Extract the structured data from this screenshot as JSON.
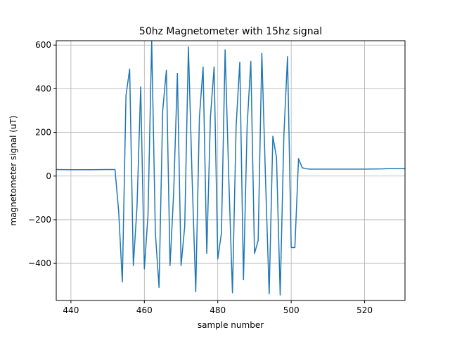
{
  "chart_data": {
    "type": "line",
    "title": "50hz Magnetometer with 15hz signal",
    "xlabel": "sample number",
    "ylabel": "magnetometer signal (uT)",
    "xlim": [
      436,
      531
    ],
    "ylim": [
      -570,
      620
    ],
    "xticks": [
      440,
      460,
      480,
      500,
      520
    ],
    "yticks": [
      -400,
      -200,
      0,
      200,
      400,
      600
    ],
    "ytick_labels": [
      "−400",
      "−200",
      "0",
      "200",
      "400",
      "600"
    ],
    "grid": true,
    "line_color": "#1f77b4",
    "series": [
      {
        "x": [
          436,
          440,
          445,
          450,
          452,
          453,
          454,
          455,
          456,
          457,
          458,
          459,
          460,
          461,
          462,
          463,
          464,
          465,
          466,
          467,
          468,
          469,
          470,
          471,
          472,
          473,
          474,
          475,
          476,
          477,
          478,
          479,
          480,
          481,
          482,
          483,
          484,
          485,
          486,
          487,
          488,
          489,
          490,
          491,
          492,
          493,
          494,
          495,
          496,
          497,
          498,
          499,
          500,
          501,
          502,
          503,
          504,
          505,
          510,
          520,
          525,
          526,
          531
        ],
        "y": [
          30,
          29,
          29,
          30,
          30,
          -160,
          -485,
          370,
          490,
          -410,
          -140,
          408,
          -425,
          -175,
          620,
          -260,
          -510,
          300,
          485,
          -410,
          -70,
          470,
          -410,
          -230,
          592,
          -5,
          -530,
          270,
          500,
          -355,
          270,
          500,
          -380,
          -260,
          578,
          -10,
          -535,
          230,
          522,
          -475,
          230,
          525,
          -355,
          -295,
          563,
          -10,
          -540,
          182,
          85,
          -545,
          185,
          547,
          -327,
          -327,
          80,
          38,
          34,
          32,
          32,
          32,
          33,
          34,
          34
        ]
      }
    ]
  }
}
